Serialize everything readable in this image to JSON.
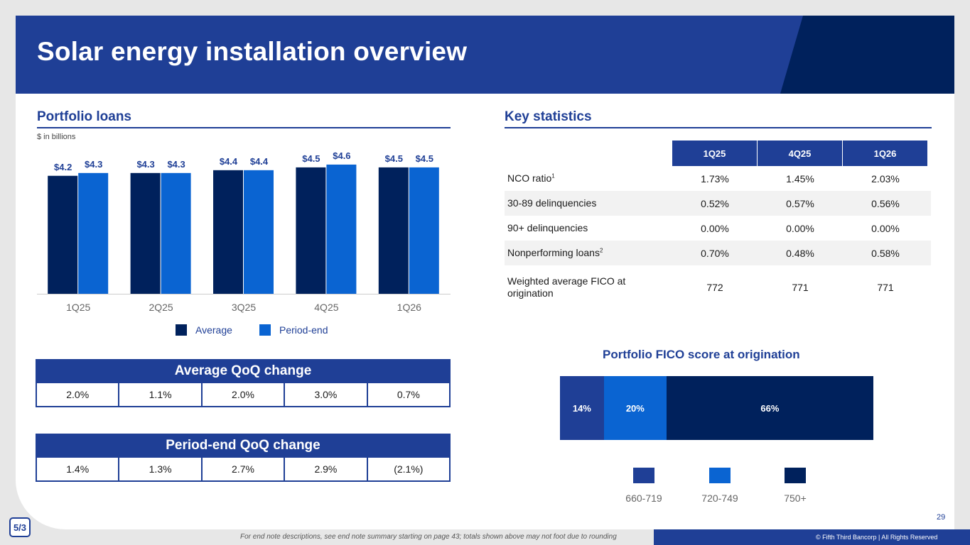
{
  "title": "Solar energy installation overview",
  "colors": {
    "brand_blue": "#1f3f96",
    "navy": "#00215c",
    "bright_blue": "#0a64d2"
  },
  "portfolio": {
    "heading": "Portfolio loans",
    "subnote": "$ in billions",
    "legend": [
      "Average",
      "Period-end"
    ]
  },
  "chart_data": [
    {
      "type": "bar",
      "title": "Portfolio loans",
      "ylabel": "$ in billions",
      "categories": [
        "1Q25",
        "2Q25",
        "3Q25",
        "4Q25",
        "1Q26"
      ],
      "series": [
        {
          "name": "Average",
          "color": "#00215c",
          "values": [
            4.2,
            4.3,
            4.4,
            4.5,
            4.5
          ],
          "labels": [
            "$4.2",
            "$4.3",
            "$4.4",
            "$4.5",
            "$4.5"
          ]
        },
        {
          "name": "Period-end",
          "color": "#0a64d2",
          "values": [
            4.3,
            4.3,
            4.4,
            4.6,
            4.5
          ],
          "labels": [
            "$4.3",
            "$4.3",
            "$4.4",
            "$4.6",
            "$4.5"
          ]
        }
      ],
      "ylim": [
        0,
        4.8
      ],
      "grid": false,
      "legend": "bottom"
    },
    {
      "type": "bar",
      "stacked": true,
      "orientation": "horizontal",
      "title": "Portfolio FICO score at origination",
      "categories": [
        "660-719",
        "720-749",
        "750+"
      ],
      "values": [
        14,
        20,
        66
      ],
      "labels": [
        "14%",
        "20%",
        "66%"
      ],
      "colors": [
        "#1f3f96",
        "#0a64d2",
        "#00215c"
      ],
      "legend": "bottom"
    }
  ],
  "avg_qoq": {
    "title": "Average QoQ change",
    "values": [
      "2.0%",
      "1.1%",
      "2.0%",
      "3.0%",
      "0.7%"
    ]
  },
  "pe_qoq": {
    "title": "Period-end QoQ change",
    "values": [
      "1.4%",
      "1.3%",
      "2.7%",
      "2.9%",
      "(2.1%)"
    ]
  },
  "stats": {
    "heading": "Key statistics",
    "columns": [
      "1Q25",
      "4Q25",
      "1Q26"
    ],
    "rows": [
      {
        "label": "NCO ratio",
        "sup": "1",
        "values": [
          "1.73%",
          "1.45%",
          "2.03%"
        ]
      },
      {
        "label": "30-89 delinquencies",
        "sup": "",
        "values": [
          "0.52%",
          "0.57%",
          "0.56%"
        ]
      },
      {
        "label": "90+ delinquencies",
        "sup": "",
        "values": [
          "0.00%",
          "0.00%",
          "0.00%"
        ]
      },
      {
        "label": "Nonperforming loans",
        "sup": "2",
        "values": [
          "0.70%",
          "0.48%",
          "0.58%"
        ]
      },
      {
        "label": "Weighted average FICO at origination",
        "sup": "",
        "values": [
          "772",
          "771",
          "771"
        ]
      }
    ]
  },
  "fico_title": "Portfolio FICO score at origination",
  "page_number": "29",
  "logo_text": "5/3",
  "footnote": "For end note descriptions, see end note summary starting on page 43; totals shown above may not foot due to rounding",
  "copyright": "© Fifth Third Bancorp | All Rights Reserved"
}
